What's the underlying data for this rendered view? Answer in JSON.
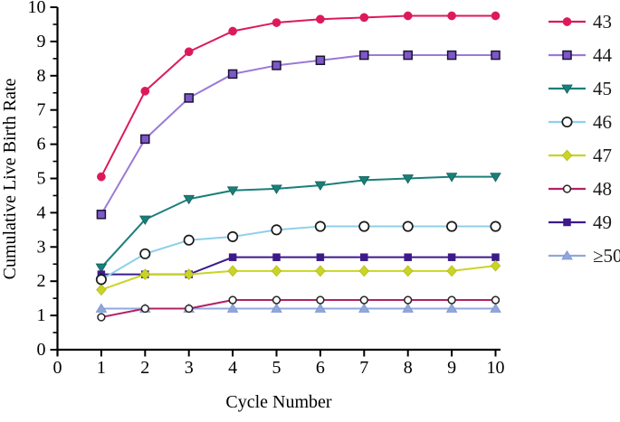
{
  "figure": {
    "background": "#ffffff",
    "axis_color": "#000000"
  },
  "chart_data": {
    "type": "line",
    "title": "",
    "xlabel": "Cycle Number",
    "ylabel": "Cumulative Live Birth Rate",
    "x": [
      1,
      2,
      3,
      4,
      5,
      6,
      7,
      8,
      9,
      10
    ],
    "xlim": [
      0,
      10
    ],
    "ylim": [
      0,
      10
    ],
    "x_ticks": [
      0,
      1,
      2,
      3,
      4,
      5,
      6,
      7,
      8,
      9,
      10
    ],
    "y_ticks": [
      0,
      1,
      2,
      3,
      4,
      5,
      6,
      7,
      8,
      9,
      10
    ],
    "y_minor_tick_step": 0.5,
    "grid": false,
    "legend_position": "right",
    "series": [
      {
        "name": "43",
        "color": "#DC1A5B",
        "marker": "circle-filled",
        "marker_fill": "#DC1A5B",
        "marker_edge": "#DC1A5B",
        "values": [
          5.05,
          7.55,
          8.7,
          9.3,
          9.55,
          9.65,
          9.7,
          9.75,
          9.75,
          9.75
        ]
      },
      {
        "name": "44",
        "color": "#9C79D8",
        "marker": "square-open",
        "marker_fill": "#7E57C8",
        "marker_edge": "#1B1430",
        "values": [
          3.95,
          6.15,
          7.35,
          8.05,
          8.3,
          8.45,
          8.6,
          8.6,
          8.6,
          8.6
        ]
      },
      {
        "name": "45",
        "color": "#1A7F7A",
        "marker": "triangle-down",
        "marker_fill": "#1A7F7A",
        "marker_edge": "#116059",
        "values": [
          2.4,
          3.8,
          4.4,
          4.65,
          4.7,
          4.8,
          4.95,
          5.0,
          5.05,
          5.05
        ]
      },
      {
        "name": "46",
        "color": "#8ED0E8",
        "marker": "circle-open",
        "marker_fill": "#ffffff",
        "marker_edge": "#1a1a1a",
        "values": [
          2.05,
          2.8,
          3.2,
          3.3,
          3.5,
          3.6,
          3.6,
          3.6,
          3.6,
          3.6
        ]
      },
      {
        "name": "47",
        "color": "#C9D426",
        "marker": "diamond",
        "marker_fill": "#C9D426",
        "marker_edge": "#b3bd15",
        "values": [
          1.75,
          2.2,
          2.2,
          2.3,
          2.3,
          2.3,
          2.3,
          2.3,
          2.3,
          2.45
        ]
      },
      {
        "name": "48",
        "color": "#B02268",
        "marker": "circle-open-small",
        "marker_fill": "#ffffff",
        "marker_edge": "#262626",
        "values": [
          0.95,
          1.2,
          1.2,
          1.45,
          1.45,
          1.45,
          1.45,
          1.45,
          1.45,
          1.45
        ]
      },
      {
        "name": "49",
        "color": "#3D1A8A",
        "marker": "square-filled",
        "marker_fill": "#3D1A8A",
        "marker_edge": "#3D1A8A",
        "values": [
          2.2,
          2.2,
          2.2,
          2.7,
          2.7,
          2.7,
          2.7,
          2.7,
          2.7,
          2.7
        ]
      },
      {
        "name": "≥50",
        "color": "#8FA8DC",
        "marker": "triangle-up",
        "marker_fill": "#8FA8DC",
        "marker_edge": "#7c95cc",
        "values": [
          1.2,
          1.2,
          1.2,
          1.2,
          1.2,
          1.2,
          1.2,
          1.2,
          1.2,
          1.2
        ]
      }
    ],
    "draw_order": [
      "44",
      "43",
      "45",
      "49",
      "47",
      "≥50",
      "48",
      "46"
    ]
  }
}
